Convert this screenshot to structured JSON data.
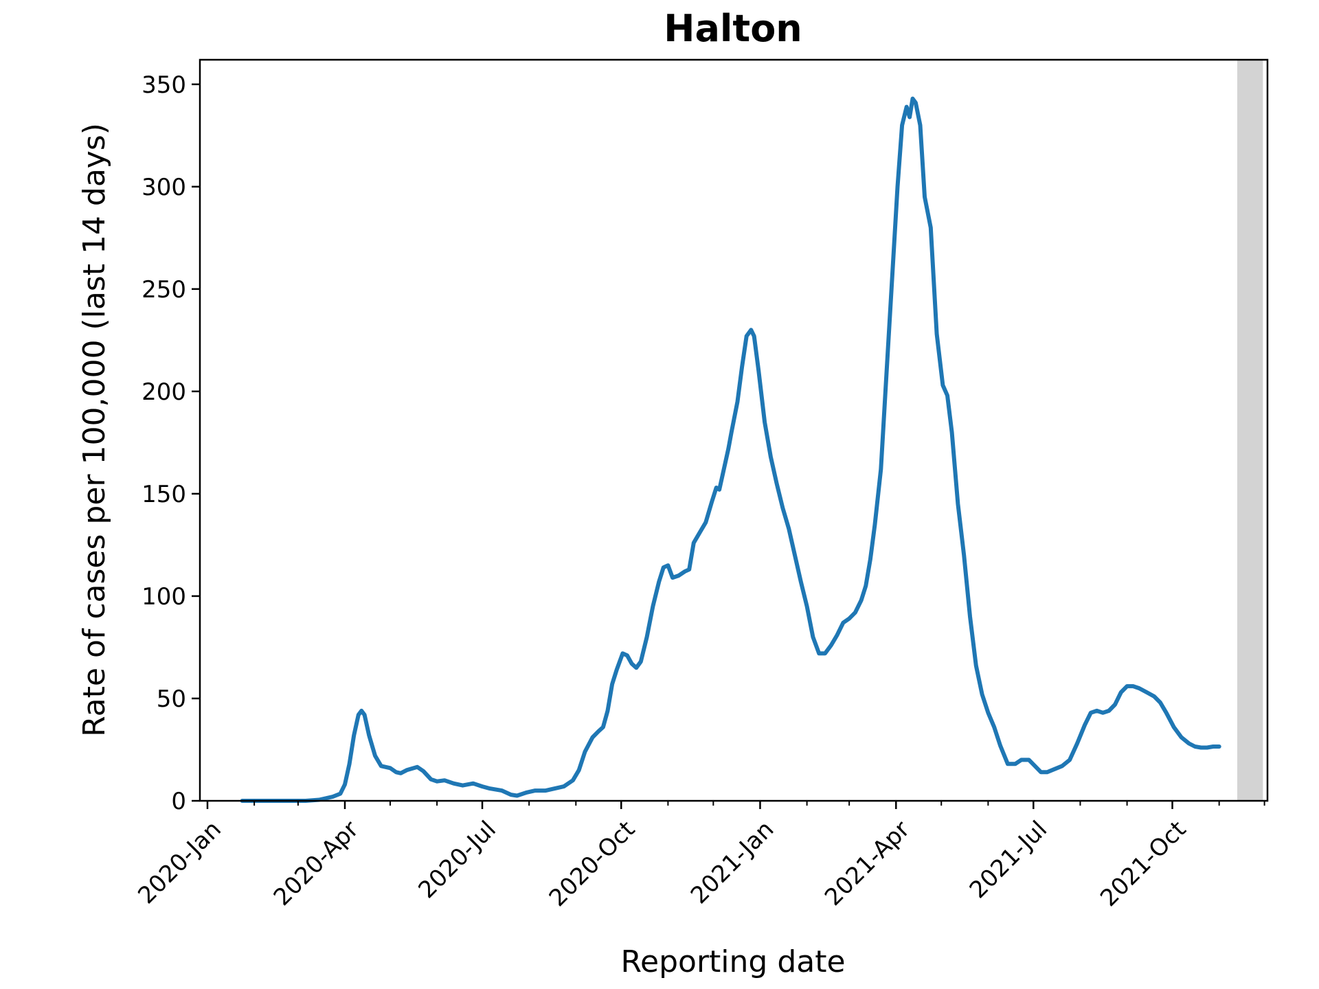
{
  "chart_data": {
    "type": "line",
    "title": "Halton",
    "xlabel": "Reporting date",
    "ylabel": "Rate of cases per 100,000 (last 14 days)",
    "xlim": [
      "2019-12-27",
      "2021-12-03"
    ],
    "ylim": [
      0,
      362
    ],
    "x_ticks": [
      {
        "date": "2020-01-01",
        "label": "2020-Jan"
      },
      {
        "date": "2020-04-01",
        "label": "2020-Apr"
      },
      {
        "date": "2020-07-01",
        "label": "2020-Jul"
      },
      {
        "date": "2020-10-01",
        "label": "2020-Oct"
      },
      {
        "date": "2021-01-01",
        "label": "2021-Jan"
      },
      {
        "date": "2021-04-01",
        "label": "2021-Apr"
      },
      {
        "date": "2021-07-01",
        "label": "2021-Jul"
      },
      {
        "date": "2021-10-01",
        "label": "2021-Oct"
      }
    ],
    "x_minor_ticks": [
      "2020-02-01",
      "2020-03-01",
      "2020-05-01",
      "2020-06-01",
      "2020-08-01",
      "2020-09-01",
      "2020-11-01",
      "2020-12-01",
      "2021-02-01",
      "2021-03-01",
      "2021-05-01",
      "2021-06-01",
      "2021-08-01",
      "2021-09-01",
      "2021-11-01",
      "2021-12-01"
    ],
    "y_ticks": [
      0,
      50,
      100,
      150,
      200,
      250,
      300,
      350
    ],
    "grid": false,
    "shaded_region": {
      "start": "2021-11-13",
      "end": "2021-11-30",
      "color": "#d3d3d3"
    },
    "series": [
      {
        "color": "#1f77b4",
        "points": [
          [
            "2020-01-24",
            0
          ],
          [
            "2020-02-15",
            0
          ],
          [
            "2020-03-06",
            0
          ],
          [
            "2020-03-15",
            0.5
          ],
          [
            "2020-03-24",
            2
          ],
          [
            "2020-03-29",
            3.5
          ],
          [
            "2020-04-01",
            8
          ],
          [
            "2020-04-04",
            18
          ],
          [
            "2020-04-07",
            32
          ],
          [
            "2020-04-10",
            42
          ],
          [
            "2020-04-12",
            44
          ],
          [
            "2020-04-14",
            42
          ],
          [
            "2020-04-17",
            32
          ],
          [
            "2020-04-21",
            22
          ],
          [
            "2020-04-25",
            17
          ],
          [
            "2020-05-01",
            16
          ],
          [
            "2020-05-05",
            14
          ],
          [
            "2020-05-08",
            13.5
          ],
          [
            "2020-05-12",
            15
          ],
          [
            "2020-05-19",
            16.5
          ],
          [
            "2020-05-23",
            14.5
          ],
          [
            "2020-05-28",
            10.5
          ],
          [
            "2020-06-01",
            9.5
          ],
          [
            "2020-06-06",
            10
          ],
          [
            "2020-06-12",
            8.5
          ],
          [
            "2020-06-18",
            7.5
          ],
          [
            "2020-06-25",
            8.5
          ],
          [
            "2020-07-01",
            7
          ],
          [
            "2020-07-06",
            6
          ],
          [
            "2020-07-14",
            5
          ],
          [
            "2020-07-20",
            3
          ],
          [
            "2020-07-24",
            2.5
          ],
          [
            "2020-07-30",
            4
          ],
          [
            "2020-08-05",
            5
          ],
          [
            "2020-08-12",
            5
          ],
          [
            "2020-08-18",
            6
          ],
          [
            "2020-08-24",
            7
          ],
          [
            "2020-08-30",
            10
          ],
          [
            "2020-09-03",
            15
          ],
          [
            "2020-09-07",
            24
          ],
          [
            "2020-09-12",
            31
          ],
          [
            "2020-09-16",
            34
          ],
          [
            "2020-09-19",
            36
          ],
          [
            "2020-09-22",
            44
          ],
          [
            "2020-09-25",
            57
          ],
          [
            "2020-09-28",
            64
          ],
          [
            "2020-10-02",
            72
          ],
          [
            "2020-10-05",
            71
          ],
          [
            "2020-10-08",
            67
          ],
          [
            "2020-10-11",
            65
          ],
          [
            "2020-10-14",
            68
          ],
          [
            "2020-10-18",
            80
          ],
          [
            "2020-10-22",
            95
          ],
          [
            "2020-10-26",
            107
          ],
          [
            "2020-10-29",
            114
          ],
          [
            "2020-11-01",
            115
          ],
          [
            "2020-11-04",
            109
          ],
          [
            "2020-11-08",
            110
          ],
          [
            "2020-11-12",
            112
          ],
          [
            "2020-11-15",
            113
          ],
          [
            "2020-11-18",
            126
          ],
          [
            "2020-11-22",
            131
          ],
          [
            "2020-11-26",
            136
          ],
          [
            "2020-11-30",
            146
          ],
          [
            "2020-12-03",
            153
          ],
          [
            "2020-12-05",
            152
          ],
          [
            "2020-12-08",
            162
          ],
          [
            "2020-12-11",
            172
          ],
          [
            "2020-12-13",
            180
          ],
          [
            "2020-12-17",
            195
          ],
          [
            "2020-12-20",
            212
          ],
          [
            "2020-12-23",
            227
          ],
          [
            "2020-12-26",
            230
          ],
          [
            "2020-12-28",
            227
          ],
          [
            "2020-12-31",
            210
          ],
          [
            "2021-01-04",
            185
          ],
          [
            "2021-01-08",
            168
          ],
          [
            "2021-01-12",
            155
          ],
          [
            "2021-01-16",
            143
          ],
          [
            "2021-01-20",
            133
          ],
          [
            "2021-01-24",
            120
          ],
          [
            "2021-01-28",
            107
          ],
          [
            "2021-02-01",
            95
          ],
          [
            "2021-02-05",
            80
          ],
          [
            "2021-02-09",
            72
          ],
          [
            "2021-02-13",
            72
          ],
          [
            "2021-02-17",
            76
          ],
          [
            "2021-02-21",
            81
          ],
          [
            "2021-02-25",
            87
          ],
          [
            "2021-03-01",
            89
          ],
          [
            "2021-03-05",
            92
          ],
          [
            "2021-03-09",
            98
          ],
          [
            "2021-03-12",
            105
          ],
          [
            "2021-03-15",
            118
          ],
          [
            "2021-03-18",
            135
          ],
          [
            "2021-03-22",
            162
          ],
          [
            "2021-03-25",
            200
          ],
          [
            "2021-03-29",
            250
          ],
          [
            "2021-04-02",
            300
          ],
          [
            "2021-04-05",
            330
          ],
          [
            "2021-04-08",
            339
          ],
          [
            "2021-04-10",
            334
          ],
          [
            "2021-04-12",
            343
          ],
          [
            "2021-04-14",
            341
          ],
          [
            "2021-04-17",
            330
          ],
          [
            "2021-04-20",
            295
          ],
          [
            "2021-04-24",
            280
          ],
          [
            "2021-04-28",
            228
          ],
          [
            "2021-05-02",
            203
          ],
          [
            "2021-05-05",
            198
          ],
          [
            "2021-05-08",
            180
          ],
          [
            "2021-05-12",
            145
          ],
          [
            "2021-05-16",
            120
          ],
          [
            "2021-05-20",
            90
          ],
          [
            "2021-05-24",
            66
          ],
          [
            "2021-05-28",
            52
          ],
          [
            "2021-06-01",
            43
          ],
          [
            "2021-06-05",
            36
          ],
          [
            "2021-06-09",
            27
          ],
          [
            "2021-06-14",
            18
          ],
          [
            "2021-06-19",
            18
          ],
          [
            "2021-06-23",
            20
          ],
          [
            "2021-06-28",
            20
          ],
          [
            "2021-07-02",
            17
          ],
          [
            "2021-07-06",
            14
          ],
          [
            "2021-07-10",
            14
          ],
          [
            "2021-07-15",
            15.5
          ],
          [
            "2021-07-20",
            17
          ],
          [
            "2021-07-25",
            20
          ],
          [
            "2021-07-30",
            28
          ],
          [
            "2021-08-04",
            37
          ],
          [
            "2021-08-08",
            43
          ],
          [
            "2021-08-12",
            44
          ],
          [
            "2021-08-16",
            43
          ],
          [
            "2021-08-20",
            44
          ],
          [
            "2021-08-24",
            47
          ],
          [
            "2021-08-28",
            53
          ],
          [
            "2021-09-01",
            56
          ],
          [
            "2021-09-05",
            56
          ],
          [
            "2021-09-09",
            55
          ],
          [
            "2021-09-14",
            53
          ],
          [
            "2021-09-19",
            51
          ],
          [
            "2021-09-23",
            48
          ],
          [
            "2021-09-27",
            43
          ],
          [
            "2021-10-02",
            36
          ],
          [
            "2021-10-07",
            31
          ],
          [
            "2021-10-12",
            28
          ],
          [
            "2021-10-16",
            26.5
          ],
          [
            "2021-10-20",
            26
          ],
          [
            "2021-10-24",
            26
          ],
          [
            "2021-10-28",
            26.5
          ],
          [
            "2021-11-01",
            26.5
          ]
        ]
      }
    ]
  }
}
